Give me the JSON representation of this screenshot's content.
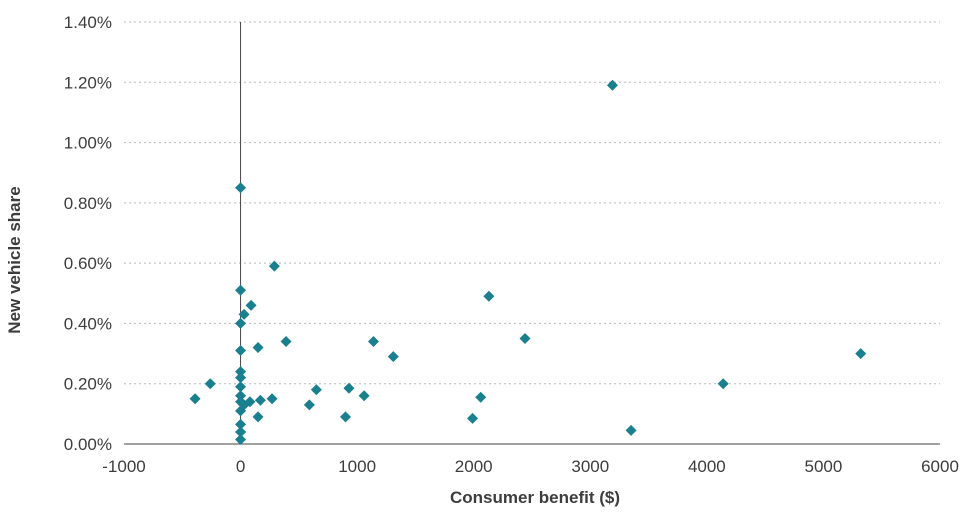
{
  "chart_data": {
    "type": "scatter",
    "title": "",
    "xlabel": "Consumer benefit ($)",
    "ylabel": "New vehicle share",
    "xlim": [
      -1000,
      6000
    ],
    "ylim": [
      0.0,
      1.4
    ],
    "x_ticks": [
      -1000,
      0,
      1000,
      2000,
      3000,
      4000,
      5000,
      6000
    ],
    "x_tick_labels": [
      "-1000",
      "0",
      "1000",
      "2000",
      "3000",
      "4000",
      "5000",
      "6000"
    ],
    "y_ticks": [
      0.0,
      0.2,
      0.4,
      0.6,
      0.8,
      1.0,
      1.2,
      1.4
    ],
    "y_tick_labels": [
      "0.00%",
      "0.20%",
      "0.40%",
      "0.60%",
      "0.80%",
      "1.00%",
      "1.20%",
      "1.40%"
    ],
    "grid": "horizontal dotted",
    "legend": "none",
    "marker": "diamond",
    "marker_color": "#1a7f8e",
    "series": [
      {
        "points": [
          {
            "x": -390,
            "y": 0.15
          },
          {
            "x": -260,
            "y": 0.2
          },
          {
            "x": 0,
            "y": 0.85
          },
          {
            "x": 0,
            "y": 0.51
          },
          {
            "x": 0,
            "y": 0.4
          },
          {
            "x": 0,
            "y": 0.31
          },
          {
            "x": 0,
            "y": 0.24
          },
          {
            "x": 0,
            "y": 0.22
          },
          {
            "x": 0,
            "y": 0.19
          },
          {
            "x": 0,
            "y": 0.16
          },
          {
            "x": 0,
            "y": 0.14
          },
          {
            "x": 0,
            "y": 0.11
          },
          {
            "x": 0,
            "y": 0.065
          },
          {
            "x": 0,
            "y": 0.04
          },
          {
            "x": 0,
            "y": 0.015
          },
          {
            "x": 30,
            "y": 0.43
          },
          {
            "x": 30,
            "y": 0.13
          },
          {
            "x": 90,
            "y": 0.46
          },
          {
            "x": 80,
            "y": 0.14
          },
          {
            "x": 150,
            "y": 0.32
          },
          {
            "x": 150,
            "y": 0.09
          },
          {
            "x": 170,
            "y": 0.145
          },
          {
            "x": 270,
            "y": 0.15
          },
          {
            "x": 290,
            "y": 0.59
          },
          {
            "x": 390,
            "y": 0.34
          },
          {
            "x": 590,
            "y": 0.13
          },
          {
            "x": 650,
            "y": 0.18
          },
          {
            "x": 900,
            "y": 0.09
          },
          {
            "x": 930,
            "y": 0.185
          },
          {
            "x": 1060,
            "y": 0.16
          },
          {
            "x": 1140,
            "y": 0.34
          },
          {
            "x": 1310,
            "y": 0.29
          },
          {
            "x": 1990,
            "y": 0.085
          },
          {
            "x": 2060,
            "y": 0.155
          },
          {
            "x": 2130,
            "y": 0.49
          },
          {
            "x": 2440,
            "y": 0.35
          },
          {
            "x": 3190,
            "y": 1.19
          },
          {
            "x": 3350,
            "y": 0.045
          },
          {
            "x": 4140,
            "y": 0.2
          },
          {
            "x": 5320,
            "y": 0.3
          }
        ]
      }
    ]
  }
}
